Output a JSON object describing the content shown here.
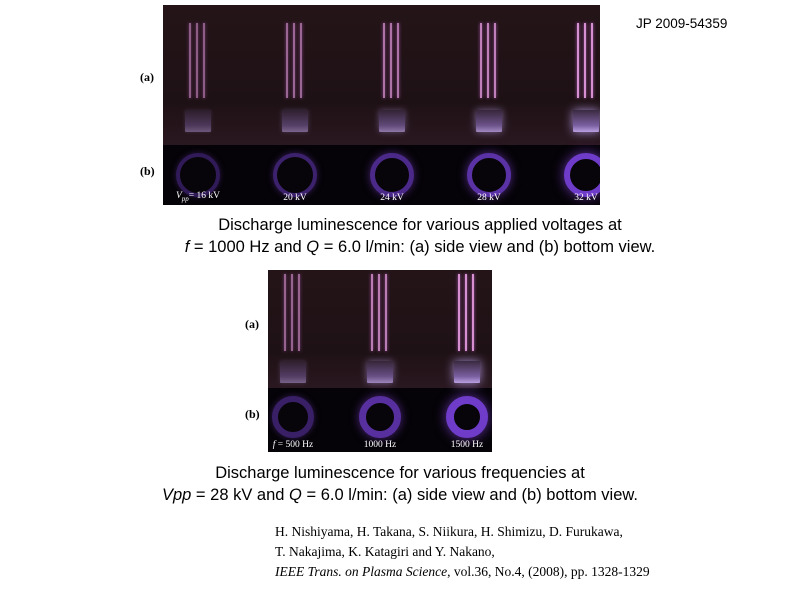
{
  "patent_number": "JP 2009-54359",
  "figure1": {
    "label_a": "(a)",
    "label_b": "(b)",
    "items": [
      {
        "caption": "V",
        "caption_sub": "pp",
        "caption_rest": "= 16 kV",
        "intensity": 0.2
      },
      {
        "caption": "20 kV",
        "intensity": 0.35
      },
      {
        "caption": "24 kV",
        "intensity": 0.55
      },
      {
        "caption": "28 kV",
        "intensity": 0.75
      },
      {
        "caption": "32 kV",
        "intensity": 1.0
      }
    ],
    "caption_line1": "Discharge luminescence for various applied voltages at",
    "caption_line2_f": "f",
    "caption_line2_a": " = 1000 Hz and ",
    "caption_line2_q": "Q",
    "caption_line2_b": " = 6.0 l/min: (a) side view and (b) bottom view."
  },
  "figure2": {
    "label_a": "(a)",
    "label_b": "(b)",
    "items": [
      {
        "caption": "f",
        "caption_rest": " = 500 Hz",
        "intensity": 0.3
      },
      {
        "caption": "1000 Hz",
        "intensity": 0.7
      },
      {
        "caption": "1500 Hz",
        "intensity": 1.0
      }
    ],
    "caption_line1": "Discharge luminescence for various frequencies at",
    "caption_line2_v": "Vpp",
    "caption_line2_a": " = 28 kV and ",
    "caption_line2_q": "Q",
    "caption_line2_b": " = 6.0 l/min: (a) side view and (b) bottom view."
  },
  "reference": {
    "line1": "H. Nishiyama, H. Takana, S. Niikura, H. Shimizu, D. Furukawa,",
    "line2": "T. Nakajima, K. Katagiri and Y. Nakano,",
    "journal": "IEEE Trans. on Plasma Science",
    "line3_rest": ", vol.36, No.4, (2008), pp. 1328-1329"
  }
}
